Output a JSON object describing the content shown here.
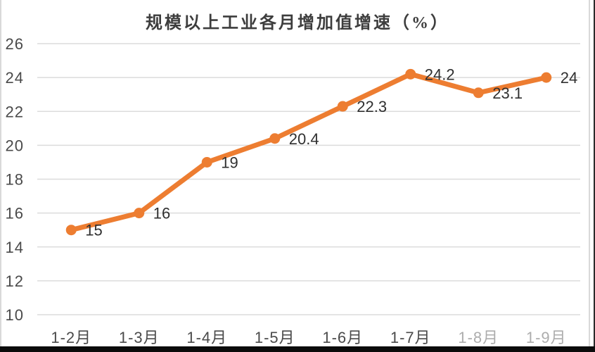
{
  "chart_data": {
    "type": "line",
    "title": "规模以上工业各月增加值增速（%）",
    "categories": [
      "1-2月",
      "1-3月",
      "1-4月",
      "1-5月",
      "1-6月",
      "1-7月",
      "1-8月",
      "1-9月"
    ],
    "series": [
      {
        "values": [
          15,
          16,
          19,
          20.4,
          22.3,
          24.2,
          23.1,
          24
        ]
      }
    ],
    "data_labels": [
      "15",
      "16",
      "19",
      "20.4",
      "22.3",
      "24.2",
      "23.1",
      "24"
    ],
    "y_ticks": [
      26,
      24,
      22,
      20,
      18,
      16,
      14,
      12,
      10
    ],
    "ylim": [
      10,
      26
    ],
    "xlabel": "",
    "ylabel": "",
    "grid": true,
    "legend": "none",
    "line_color": "#ED7D31",
    "marker_color": "#ED7D31",
    "gridline_color": "#DCDCDC",
    "axis_label_color": "#4a4a4a",
    "data_label_color": "#303030",
    "title_color": "#3d3d3d",
    "faded_category_indexes": [
      6,
      7
    ]
  }
}
